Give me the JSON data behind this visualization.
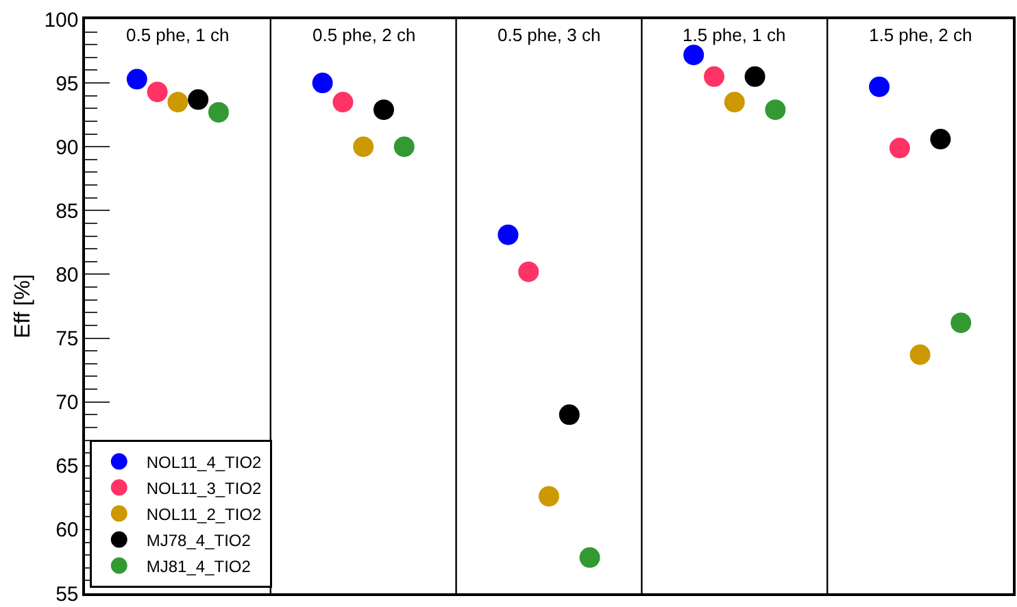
{
  "chart_data": {
    "type": "scatter",
    "ylabel": "Eff [%]",
    "categories": [
      "0.5 phe, 1 ch",
      "0.5 phe, 2 ch",
      "0.5 phe, 3 ch",
      "1.5 phe, 1 ch",
      "1.5 phe, 2 ch"
    ],
    "series": [
      {
        "name": "NOL11_4_TIO2",
        "color": "#0000ff",
        "values": [
          95.3,
          95.0,
          83.1,
          97.2,
          94.7
        ]
      },
      {
        "name": "NOL11_3_TIO2",
        "color": "#ff3366",
        "values": [
          94.3,
          93.5,
          80.2,
          95.5,
          89.9
        ]
      },
      {
        "name": "NOL11_2_TIO2",
        "color": "#cc9900",
        "values": [
          93.5,
          90.0,
          62.6,
          93.5,
          73.7
        ]
      },
      {
        "name": "MJ78_4_TIO2",
        "color": "#000000",
        "values": [
          93.7,
          92.9,
          69.0,
          95.5,
          90.6
        ]
      },
      {
        "name": "MJ81_4_TIO2",
        "color": "#339933",
        "values": [
          92.7,
          90.0,
          57.8,
          92.9,
          76.2
        ]
      }
    ],
    "ylim": [
      55,
      100
    ],
    "yticks": [
      55,
      60,
      65,
      70,
      75,
      80,
      85,
      90,
      95,
      100
    ],
    "grid": "x",
    "legend": "bottom left",
    "marker": "circle"
  }
}
